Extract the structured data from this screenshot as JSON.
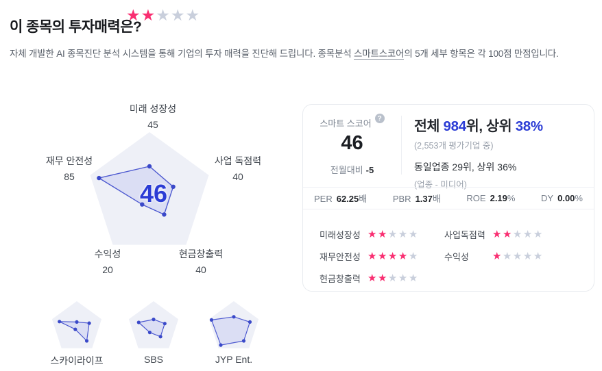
{
  "header": {
    "title": "이 종목의 투자매력은?",
    "rating": 2,
    "rating_max": 5
  },
  "description": {
    "pre": "자체 개발한 AI 종목진단 분석 시스템을 통해 기업의 투자 매력을 진단해 드립니다. 종목분석 ",
    "term": "스마트스코어",
    "post": "의 5개 세부 항목은 각 100점 만점입니다."
  },
  "chart_data": [
    {
      "type": "radar",
      "title": "스마트 스코어",
      "axes": [
        "미래 성장성",
        "사업 독점력",
        "현금창출력",
        "수익성",
        "재무 안전성"
      ],
      "values": [
        45,
        40,
        40,
        20,
        85
      ],
      "max": 100,
      "center_label": "46"
    },
    {
      "type": "radar",
      "title": "스카이라이프",
      "axes": [
        "미래 성장성",
        "사업 독점력",
        "현금창출력",
        "수익성",
        "재무 안전성"
      ],
      "values": [
        20,
        50,
        65,
        10,
        70
      ],
      "max": 100
    },
    {
      "type": "radar",
      "title": "SBS",
      "axes": [
        "미래 성장성",
        "사업 독점력",
        "현금창출력",
        "수익성",
        "재무 안전성"
      ],
      "values": [
        30,
        45,
        45,
        25,
        60
      ],
      "max": 100
    },
    {
      "type": "radar",
      "title": "JYP Ent.",
      "axes": [
        "미래 성장성",
        "사업 독점력",
        "현금창출력",
        "수익성",
        "재무 안전성"
      ],
      "values": [
        40,
        65,
        65,
        85,
        90
      ],
      "max": 100
    }
  ],
  "score_card": {
    "score_label": "스마트 스코어",
    "help_icon": "?",
    "score": "46",
    "mom_label": "전월대비",
    "mom_value": "-5",
    "overall": {
      "pre": "전체 ",
      "rank": "984",
      "mid": "위, 상위 ",
      "pct": "38%"
    },
    "overall_note": "(2,553개 평가기업 중)",
    "industry_line": "동일업종 29위, 상위 36%",
    "industry_note": "(업종 - 미디어)",
    "metrics": [
      {
        "label": "PER",
        "value": "62.25",
        "suffix": "배"
      },
      {
        "label": "PBR",
        "value": "1.37",
        "suffix": "배"
      },
      {
        "label": "ROE",
        "value": "2.19",
        "suffix": "%"
      },
      {
        "label": "DY",
        "value": "0.00",
        "suffix": "%"
      }
    ],
    "ratings": [
      {
        "label": "미래성장성",
        "stars": 2
      },
      {
        "label": "사업독점력",
        "stars": 2
      },
      {
        "label": "재무안전성",
        "stars": 4
      },
      {
        "label": "수익성",
        "stars": 1
      },
      {
        "label": "현금창출력",
        "stars": 2
      }
    ]
  },
  "colors": {
    "accent_blue": "#2b3cd5",
    "star_pink": "#f92e71",
    "star_gray": "#c9cfdc",
    "pentagon_bg": "#eef0f7",
    "radar_stroke": "#4d59d0",
    "radar_fill": "rgba(86,101,220,0.12)",
    "radar_dot": "#3a49c9"
  }
}
